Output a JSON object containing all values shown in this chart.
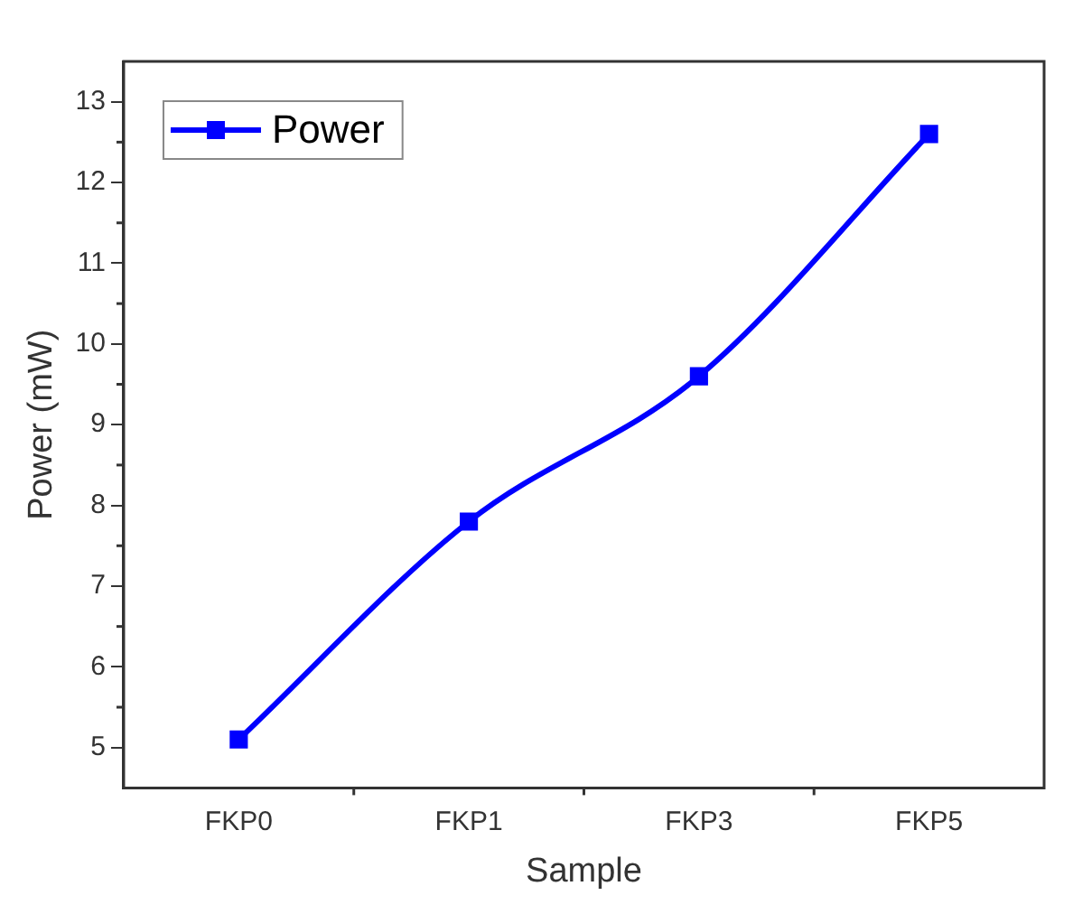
{
  "chart_data": {
    "type": "line",
    "xlabel": "Sample",
    "ylabel": "Power (mW)",
    "categories": [
      "FKP0",
      "FKP1",
      "FKP3",
      "FKP5"
    ],
    "series": [
      {
        "name": "Power",
        "color": "#0000ff",
        "values": [
          5.1,
          7.8,
          9.6,
          12.6
        ]
      }
    ],
    "ylim": [
      4.5,
      13.5
    ],
    "yticks": [
      5,
      6,
      7,
      8,
      9,
      10,
      11,
      12,
      13
    ],
    "grid": false,
    "legend": "top left",
    "marker": "square",
    "line_style": "solid"
  }
}
